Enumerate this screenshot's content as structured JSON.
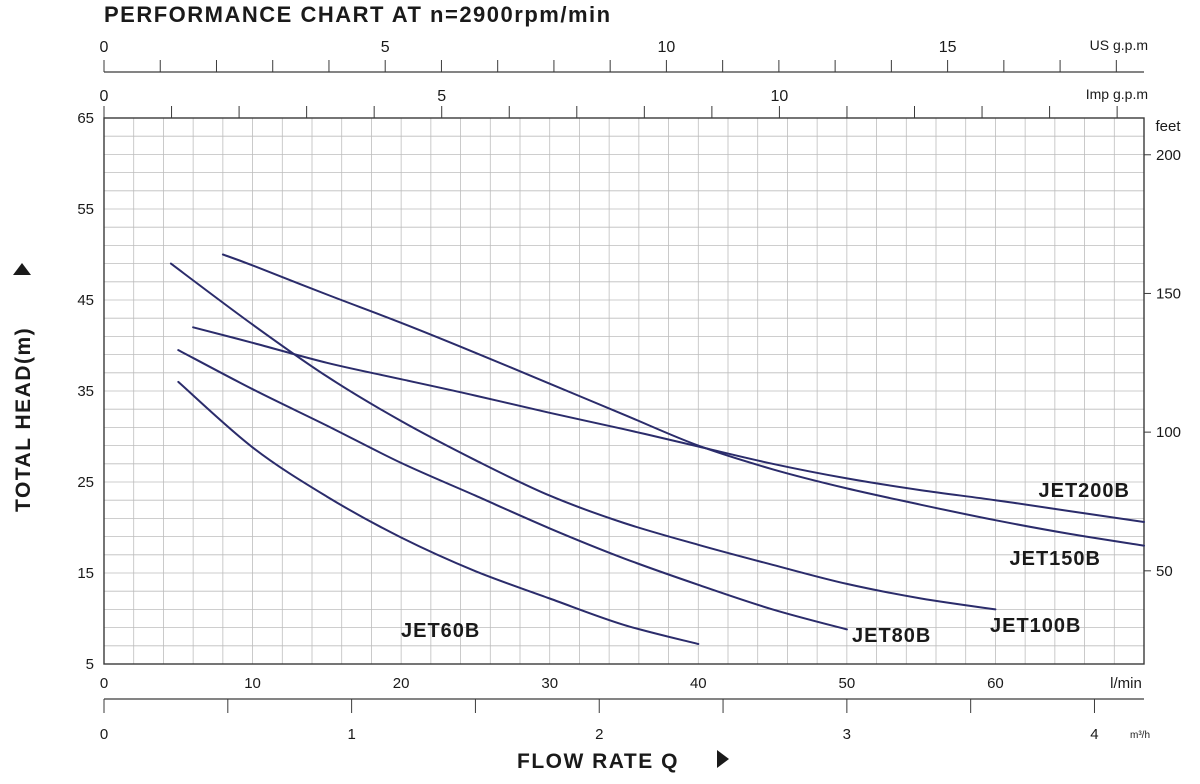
{
  "chart_data": {
    "type": "line",
    "title": "PERFORMANCE CHART AT n=2900rpm/min",
    "xlabel": "FLOW RATE Q",
    "ylabel": "TOTAL HEAD(m)",
    "x_unit": "l/min",
    "xlim": [
      0,
      70
    ],
    "ylim": [
      5,
      65
    ],
    "x_ticks": [
      0,
      10,
      20,
      30,
      40,
      50,
      60
    ],
    "y_ticks": [
      5,
      15,
      25,
      35,
      45,
      55,
      65
    ],
    "grid": true,
    "curve_color": "#2b2c6b",
    "secondary_axes": {
      "us_gpm": {
        "unit": "US g.p.m",
        "ticks": [
          "0",
          "5",
          "10",
          "15"
        ]
      },
      "imp_gpm": {
        "unit": "Imp g.p.m",
        "ticks": [
          "0",
          "5",
          "10"
        ]
      },
      "feet": {
        "unit": "feet",
        "ticks": [
          "50",
          "100",
          "150",
          "200"
        ]
      },
      "m3h": {
        "unit": "m³/h",
        "ticks": [
          "0",
          "1",
          "2",
          "3",
          "4"
        ]
      }
    },
    "series": [
      {
        "name": "JET60B",
        "x": [
          5,
          10,
          15,
          20,
          25,
          30,
          35,
          40
        ],
        "y": [
          36,
          28.8,
          23.4,
          18.9,
          15.2,
          12.2,
          9.3,
          7.2
        ]
      },
      {
        "name": "JET80B",
        "x": [
          5,
          10,
          15,
          20,
          25,
          30,
          35,
          40,
          45,
          50
        ],
        "y": [
          39.5,
          35.2,
          31.2,
          27.1,
          23.5,
          19.9,
          16.6,
          13.7,
          11,
          8.8
        ]
      },
      {
        "name": "JET100B",
        "x": [
          4.5,
          10,
          15,
          20,
          25,
          30,
          35,
          40,
          45,
          50,
          55,
          60
        ],
        "y": [
          49,
          42.3,
          36.6,
          31.7,
          27.4,
          23.5,
          20.5,
          18.1,
          15.9,
          13.8,
          12.2,
          11
        ]
      },
      {
        "name": "JET150B",
        "x": [
          6,
          10,
          15,
          20,
          25,
          30,
          35,
          40,
          45,
          50,
          55,
          60,
          65,
          70
        ],
        "y": [
          42,
          40.3,
          38.1,
          36.3,
          34.5,
          32.6,
          30.8,
          28.9,
          27,
          25.4,
          24.1,
          23,
          21.8,
          20.6
        ]
      },
      {
        "name": "JET200B",
        "x": [
          8,
          10,
          15,
          20,
          25,
          30,
          35,
          40,
          45,
          50,
          55,
          60,
          65,
          70
        ],
        "y": [
          50,
          48.8,
          45.6,
          42.5,
          39.2,
          35.8,
          32.4,
          29,
          26.4,
          24.3,
          22.5,
          20.8,
          19.3,
          18
        ]
      }
    ]
  }
}
